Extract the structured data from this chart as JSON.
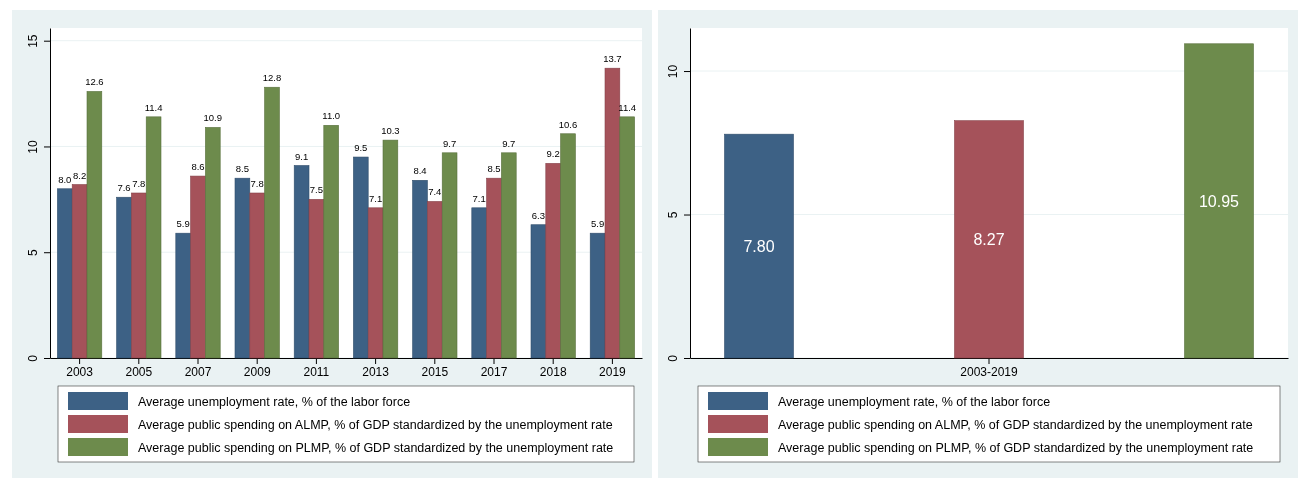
{
  "chart_data": [
    {
      "type": "bar",
      "categories": [
        "2003",
        "2005",
        "2007",
        "2009",
        "2011",
        "2013",
        "2015",
        "2017",
        "2018",
        "2019"
      ],
      "series": [
        {
          "name": "Average unemployment rate, % of the labor force",
          "color": "#3d6185",
          "values": [
            8.0,
            7.6,
            5.9,
            8.5,
            9.1,
            9.5,
            8.4,
            7.1,
            6.3,
            5.9
          ],
          "value_labels": [
            "8.0",
            "7.6",
            "5.9",
            "8.5",
            "9.1",
            "9.5",
            "8.4",
            "7.1",
            "6.3",
            "5.9"
          ]
        },
        {
          "name": "Average public spending on ALMP, % of GDP standardized by the unemployment rate",
          "color": "#a5525a",
          "values": [
            8.2,
            7.8,
            8.6,
            7.8,
            7.5,
            7.1,
            7.4,
            8.5,
            9.2,
            13.7
          ],
          "value_labels": [
            "8.2",
            "7.8",
            "8.6",
            "7.8",
            "7.5",
            "7.1",
            "7.4",
            "8.5",
            "9.2",
            "13.7"
          ]
        },
        {
          "name": "Average public spending on PLMP, % of GDP standardized by the unemployment rate",
          "color": "#6d8b4c",
          "values": [
            12.6,
            11.4,
            10.9,
            12.8,
            11.0,
            10.3,
            9.7,
            9.7,
            10.6,
            11.4
          ],
          "value_labels": [
            "12.6",
            "11.4",
            "10.9",
            "12.8",
            "11.0",
            "10.3",
            "9.7",
            "9.7",
            "10.6",
            "11.4"
          ]
        }
      ],
      "ylim": [
        0,
        15.6
      ],
      "yticks": [
        0,
        5,
        10,
        15
      ],
      "grid": "y",
      "legend": "bottom"
    },
    {
      "type": "bar",
      "categories": [
        "2003-2019"
      ],
      "series": [
        {
          "name": "Average unemployment rate, % of the labor force",
          "color": "#3d6185",
          "values": [
            7.8
          ],
          "value_labels": [
            "7.80"
          ]
        },
        {
          "name": "Average public spending on ALMP, % of GDP standardized by the unemployment rate",
          "color": "#a5525a",
          "values": [
            8.27
          ],
          "value_labels": [
            "8.27"
          ]
        },
        {
          "name": "Average public spending on PLMP, % of GDP standardized by the unemployment rate",
          "color": "#6d8b4c",
          "values": [
            10.95
          ],
          "value_labels": [
            "10.95"
          ]
        }
      ],
      "ylim": [
        0,
        11.5
      ],
      "yticks": [
        0,
        5,
        10
      ],
      "grid": "y",
      "legend": "bottom"
    }
  ]
}
